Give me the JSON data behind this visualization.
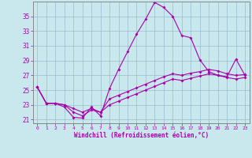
{
  "xlabel": "Windchill (Refroidissement éolien,°C)",
  "bg_color": "#c8e8ee",
  "line_color": "#aa00aa",
  "grid_color": "#99bbcc",
  "x_labels": [
    "0",
    "1",
    "2",
    "3",
    "4",
    "5",
    "6",
    "7",
    "8",
    "9",
    "10",
    "11",
    "12",
    "13",
    "14",
    "15",
    "16",
    "17",
    "18",
    "19",
    "20",
    "21",
    "22",
    "23"
  ],
  "series1": [
    25.4,
    23.2,
    23.2,
    22.7,
    21.3,
    21.2,
    22.7,
    21.5,
    25.2,
    27.8,
    30.2,
    32.6,
    34.6,
    36.9,
    36.2,
    35.0,
    32.4,
    32.1,
    29.1,
    27.5,
    27.0,
    26.8,
    29.2,
    27.0
  ],
  "series2": [
    25.4,
    23.2,
    23.2,
    23.0,
    22.5,
    22.0,
    22.5,
    22.0,
    23.8,
    24.3,
    24.8,
    25.3,
    25.8,
    26.3,
    26.8,
    27.2,
    27.0,
    27.3,
    27.5,
    27.8,
    27.6,
    27.2,
    27.0,
    27.1
  ],
  "series3": [
    25.4,
    23.2,
    23.2,
    23.0,
    22.0,
    21.5,
    22.3,
    22.0,
    23.0,
    23.5,
    24.0,
    24.5,
    25.0,
    25.5,
    26.0,
    26.5,
    26.3,
    26.6,
    26.9,
    27.2,
    27.0,
    26.7,
    26.5,
    26.7
  ],
  "ylim": [
    20.5,
    37.0
  ],
  "yticks": [
    21,
    23,
    25,
    27,
    29,
    31,
    33,
    35
  ]
}
